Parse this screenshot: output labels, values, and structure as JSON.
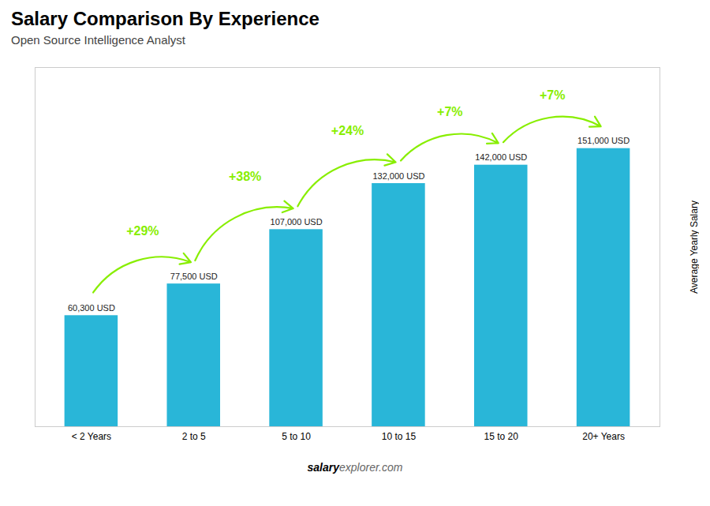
{
  "chart_data": {
    "type": "bar",
    "title": "Salary Comparison By Experience",
    "subtitle": "Open Source Intelligence Analyst",
    "categories": [
      "< 2 Years",
      "2 to 5",
      "5 to 10",
      "10 to 15",
      "15 to 20",
      "20+ Years"
    ],
    "values": [
      60300,
      77500,
      107000,
      132000,
      142000,
      151000
    ],
    "value_labels": [
      "60,300 USD",
      "77,500 USD",
      "107,000 USD",
      "132,000 USD",
      "142,000 USD",
      "151,000 USD"
    ],
    "data_labels": true,
    "color": "#29b6d8",
    "ylabel": "Average Yearly Salary",
    "ylim": [
      0,
      195000
    ],
    "yticks": [],
    "tick_labels": "x",
    "grid": false,
    "annotations": [
      {
        "text": "+29%",
        "from": "< 2 Years",
        "to": "2 to 5",
        "color": "#88ee00"
      },
      {
        "text": "+38%",
        "from": "2 to 5",
        "to": "5 to 10",
        "color": "#88ee00"
      },
      {
        "text": "+24%",
        "from": "5 to 10",
        "to": "10 to 15",
        "color": "#88ee00"
      },
      {
        "text": "+7%",
        "from": "10 to 15",
        "to": "15 to 20",
        "color": "#88ee00"
      },
      {
        "text": "+7%",
        "from": "15 to 20",
        "to": "20+ Years",
        "color": "#88ee00"
      }
    ],
    "footer": [
      "salary",
      "explorer.com"
    ]
  }
}
